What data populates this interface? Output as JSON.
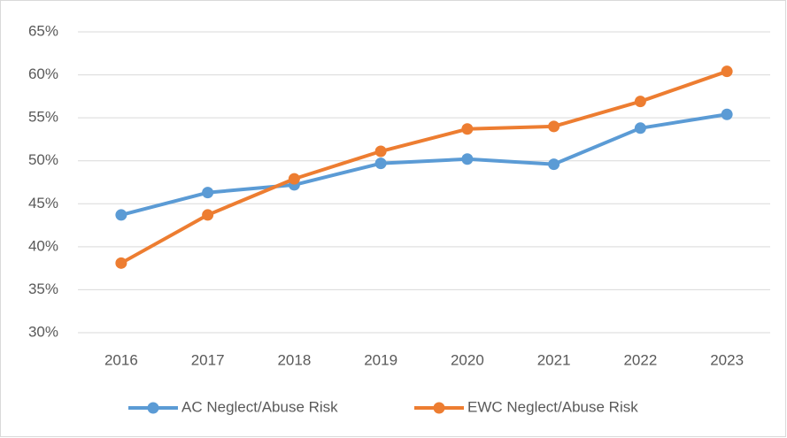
{
  "chart_data": {
    "type": "line",
    "categories": [
      "2016",
      "2017",
      "2018",
      "2019",
      "2020",
      "2021",
      "2022",
      "2023"
    ],
    "series": [
      {
        "name": "AC Neglect/Abuse Risk",
        "color": "#5b9bd5",
        "values": [
          43.7,
          46.3,
          47.2,
          49.7,
          50.2,
          49.6,
          53.8,
          55.4
        ]
      },
      {
        "name": "EWC Neglect/Abuse Risk",
        "color": "#ed7d31",
        "values": [
          38.1,
          43.7,
          47.9,
          51.1,
          53.7,
          54.0,
          56.9,
          60.4
        ]
      }
    ],
    "ylim": [
      30,
      65
    ],
    "yticks": [
      {
        "value": 30,
        "label": "30%"
      },
      {
        "value": 35,
        "label": "35%"
      },
      {
        "value": 40,
        "label": "40%"
      },
      {
        "value": 45,
        "label": "45%"
      },
      {
        "value": 50,
        "label": "50%"
      },
      {
        "value": 55,
        "label": "55%"
      },
      {
        "value": 60,
        "label": "60%"
      },
      {
        "value": 65,
        "label": "65%"
      }
    ],
    "grid": true,
    "legend": "bottom"
  }
}
